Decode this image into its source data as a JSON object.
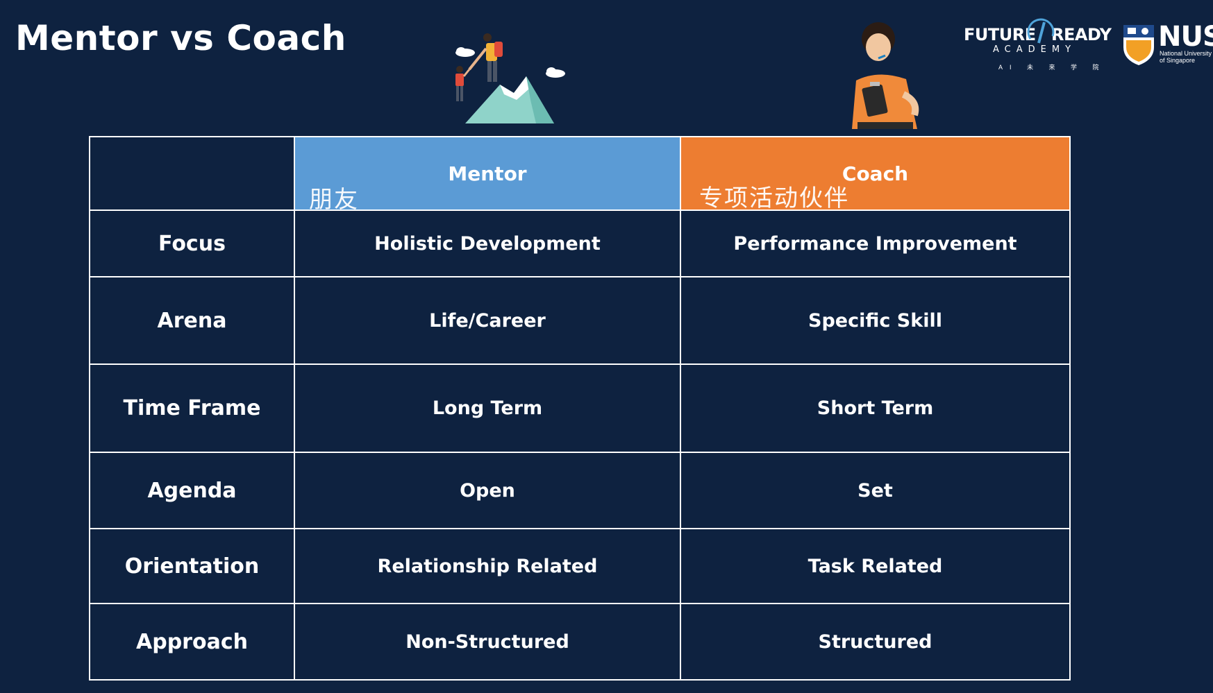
{
  "slide": {
    "title": "Mentor vs Coach"
  },
  "logos": {
    "future_ready": {
      "word_future": "FUTURE",
      "word_ready": "READY",
      "word_academy": "ACADEMY",
      "subtitle": "AI 未 来 学 院"
    },
    "nus": {
      "word": "NUS",
      "line1": "National University",
      "line2": "of Singapore"
    }
  },
  "table": {
    "headers": {
      "mentor": "Mentor",
      "coach": "Coach"
    },
    "annotations": {
      "mentor": "朋友",
      "coach": "专项活动伙伴"
    },
    "rows": [
      {
        "label": "Focus",
        "mentor": "Holistic Development",
        "coach": "Performance Improvement"
      },
      {
        "label": "Arena",
        "mentor": "Life/Career",
        "coach": "Specific Skill"
      },
      {
        "label": "Time Frame",
        "mentor": "Long Term",
        "coach": "Short Term"
      },
      {
        "label": "Agenda",
        "mentor": "Open",
        "coach": "Set"
      },
      {
        "label": "Orientation",
        "mentor": "Relationship Related",
        "coach": "Task Related"
      },
      {
        "label": "Approach",
        "mentor": "Non-Structured",
        "coach": "Structured"
      }
    ]
  },
  "colors": {
    "background": "#0e2240",
    "mentor_header": "#5b9bd5",
    "coach_header": "#ed7d31",
    "grid": "#ffffff"
  }
}
